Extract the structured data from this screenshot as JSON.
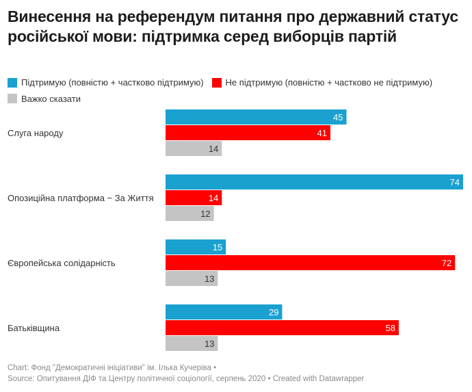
{
  "title": "Винесення на референдум питання про державний статус російської мови: підтримка серед виборців партій",
  "legend": [
    {
      "label": "Підтримую (повністю + частково підтримую)",
      "color": "#1ba1d0"
    },
    {
      "label": "Не підтримую (повністю + частково не підтримую)",
      "color": "#ff0000"
    },
    {
      "label": "Важко сказати",
      "color": "#c4c4c4"
    }
  ],
  "chart_data": {
    "type": "bar",
    "orientation": "horizontal",
    "title": "Винесення на референдум питання про державний статус російської мови: підтримка серед виборців партій",
    "xlabel": "",
    "ylabel": "",
    "xlim": [
      0,
      74
    ],
    "grid": false,
    "legend_position": "top-left",
    "categories": [
      "Слуга народу",
      "Опозиційна платформа − За Життя",
      "Європейська солідарність",
      "Батьківщина"
    ],
    "series": [
      {
        "name": "Підтримую (повністю + частково підтримую)",
        "color": "#1ba1d0",
        "label_color": "#ffffff",
        "values": [
          45,
          74,
          15,
          29
        ]
      },
      {
        "name": "Не підтримую (повністю + частково не підтримую)",
        "color": "#ff0000",
        "label_color": "#ffffff",
        "values": [
          41,
          14,
          72,
          58
        ]
      },
      {
        "name": "Важко сказати",
        "color": "#c4c4c4",
        "label_color": "#333333",
        "values": [
          14,
          12,
          13,
          13
        ]
      }
    ]
  },
  "footer": {
    "line1": "Chart: Фонд \"Демократичні ініціативи\" ім. Ілька Кучеріва •",
    "line2": "Source: Опитування ДІФ та Центру політичної соціології, серпень 2020 • Created with Datawrapper"
  }
}
